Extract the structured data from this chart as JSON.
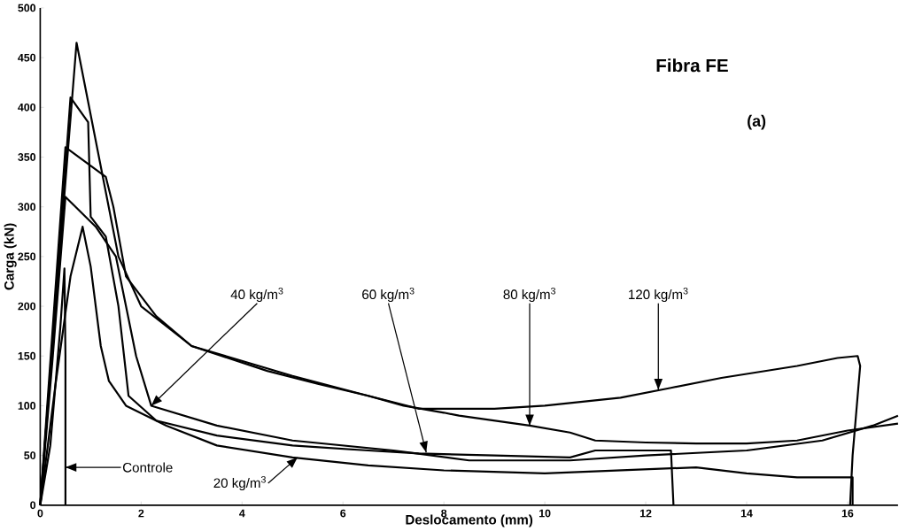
{
  "chart_data": {
    "type": "line",
    "title": "Fibra FE",
    "xlabel": "Deslocamento (mm)",
    "ylabel": "Carga (kN)",
    "xlim": [
      0,
      17
    ],
    "ylim": [
      0,
      500
    ],
    "xticks": [
      0,
      2,
      4,
      6,
      8,
      10,
      12,
      14,
      16
    ],
    "yticks": [
      0,
      50,
      100,
      150,
      200,
      250,
      300,
      350,
      400,
      450,
      500
    ],
    "grid": false,
    "marker": "none",
    "line_style": "solid",
    "series": [
      {
        "color": "#000000",
        "x": [
          0,
          0.2,
          0.4,
          0.48,
          0.5,
          0.5
        ],
        "values": [
          0,
          60,
          180,
          238,
          150,
          0
        ]
      },
      {
        "color": "#000000",
        "x": [
          0,
          0.3,
          0.6,
          0.84,
          1.0,
          1.2,
          1.36,
          1.7,
          2.5,
          3.5,
          5,
          6.5,
          8,
          10,
          12,
          13,
          14,
          15,
          16.1,
          16.1
        ],
        "values": [
          0,
          120,
          230,
          280,
          240,
          160,
          125,
          100,
          80,
          60,
          48,
          40,
          35,
          32,
          36,
          38,
          32,
          28,
          28,
          0
        ]
      },
      {
        "color": "#000000",
        "x": [
          0,
          0.25,
          0.5,
          0.9,
          1.1,
          1.5,
          1.7,
          1.9,
          2.2,
          3.5,
          5,
          7,
          8.5,
          9.5,
          10.5,
          12,
          14,
          15.5,
          16.5,
          17
        ],
        "values": [
          0,
          150,
          310,
          290,
          280,
          250,
          200,
          150,
          100,
          80,
          65,
          55,
          45,
          45,
          45,
          50,
          55,
          65,
          80,
          90
        ]
      },
      {
        "color": "#000000",
        "x": [
          0,
          0.3,
          0.6,
          0.95,
          1.0,
          1.3,
          1.55,
          1.75,
          2.3,
          3.5,
          5,
          6.5,
          7.5,
          9,
          10.5,
          11,
          12.5,
          12.55
        ],
        "values": [
          0,
          200,
          410,
          385,
          290,
          270,
          200,
          110,
          85,
          70,
          60,
          55,
          52,
          50,
          48,
          55,
          55,
          0
        ]
      },
      {
        "color": "#000000",
        "x": [
          0,
          0.25,
          0.5,
          1.3,
          1.45,
          1.7,
          2.3,
          3,
          4.5,
          5.5,
          6.5,
          7.2,
          8,
          8.3,
          9,
          9.7,
          10.5,
          11,
          12,
          13,
          14,
          15,
          16,
          17
        ],
        "values": [
          0,
          180,
          360,
          330,
          300,
          230,
          190,
          160,
          135,
          122,
          110,
          100,
          93,
          90,
          85,
          80,
          73,
          65,
          63,
          62,
          62,
          65,
          75,
          82
        ]
      },
      {
        "color": "#000000",
        "x": [
          0,
          0.35,
          0.72,
          1.55,
          2.0,
          3,
          5,
          6.5,
          7.5,
          9,
          10,
          11.5,
          12.5,
          13.5,
          15,
          15.8,
          16.2,
          16.25,
          16.1,
          16.05
        ],
        "values": [
          0,
          230,
          465,
          250,
          200,
          160,
          130,
          110,
          97,
          97,
          100,
          108,
          118,
          128,
          140,
          148,
          150,
          140,
          50,
          0
        ]
      }
    ],
    "annotations": [
      "(a)",
      "Controle",
      {
        "text": "20 kg/m$^{3}$",
        "x": 5.1,
        "y": 48
      },
      {
        "text": "40 kg/m$^{3}$",
        "x": 2.2,
        "y": 100
      },
      {
        "text": "60 kg/m$^{3}$",
        "x": 7.65,
        "y": 53
      },
      {
        "text": "80 kg/m$^{3}$",
        "x": 9.7,
        "y": 80
      },
      {
        "text": "120 kg/m$^{3}$",
        "x": 12.25,
        "y": 116
      }
    ]
  }
}
